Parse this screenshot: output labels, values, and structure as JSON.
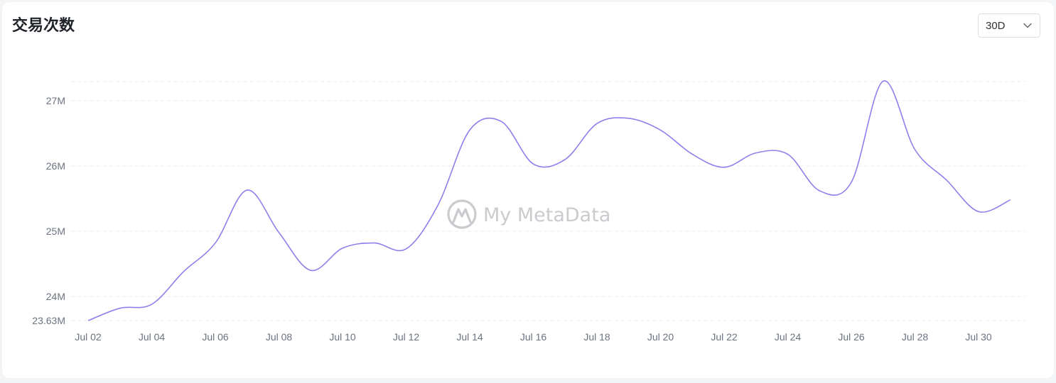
{
  "header": {
    "title": "交易次数",
    "range_selected": "30D"
  },
  "watermark": {
    "text": "My MetaData"
  },
  "colors": {
    "line": "#8b80ec",
    "grid": "#eceef1",
    "watermark": "#c9cbce"
  },
  "chart_data": {
    "type": "line",
    "title": "",
    "xlabel": "",
    "ylabel": "",
    "grid": true,
    "legend": "none",
    "y_ticks": [
      {
        "value": 23.63,
        "label": "23.63M"
      },
      {
        "value": 24,
        "label": "24M"
      },
      {
        "value": 25,
        "label": "25M"
      },
      {
        "value": 26,
        "label": "26M"
      },
      {
        "value": 27,
        "label": "27M"
      }
    ],
    "ylim": [
      23.63,
      27.3
    ],
    "x_ticks": [
      "Jul 02",
      "Jul 04",
      "Jul 06",
      "Jul 08",
      "Jul 10",
      "Jul 12",
      "Jul 14",
      "Jul 16",
      "Jul 18",
      "Jul 20",
      "Jul 22",
      "Jul 24",
      "Jul 26",
      "Jul 28",
      "Jul 30"
    ],
    "x": [
      "Jul 02",
      "Jul 03",
      "Jul 04",
      "Jul 05",
      "Jul 06",
      "Jul 07",
      "Jul 08",
      "Jul 09",
      "Jul 10",
      "Jul 11",
      "Jul 12",
      "Jul 13",
      "Jul 14",
      "Jul 15",
      "Jul 16",
      "Jul 17",
      "Jul 18",
      "Jul 19",
      "Jul 20",
      "Jul 21",
      "Jul 22",
      "Jul 23",
      "Jul 24",
      "Jul 25",
      "Jul 26",
      "Jul 27",
      "Jul 28",
      "Jul 29",
      "Jul 30",
      "Jul 31"
    ],
    "series": [
      {
        "values": [
          23.63,
          23.82,
          23.88,
          24.38,
          24.82,
          25.63,
          24.98,
          24.4,
          24.74,
          24.82,
          24.73,
          25.4,
          26.55,
          26.68,
          26.03,
          26.1,
          26.65,
          26.73,
          26.55,
          26.18,
          25.98,
          26.2,
          26.18,
          25.62,
          25.75,
          27.3,
          26.25,
          25.78,
          25.3,
          25.48
        ]
      }
    ]
  }
}
